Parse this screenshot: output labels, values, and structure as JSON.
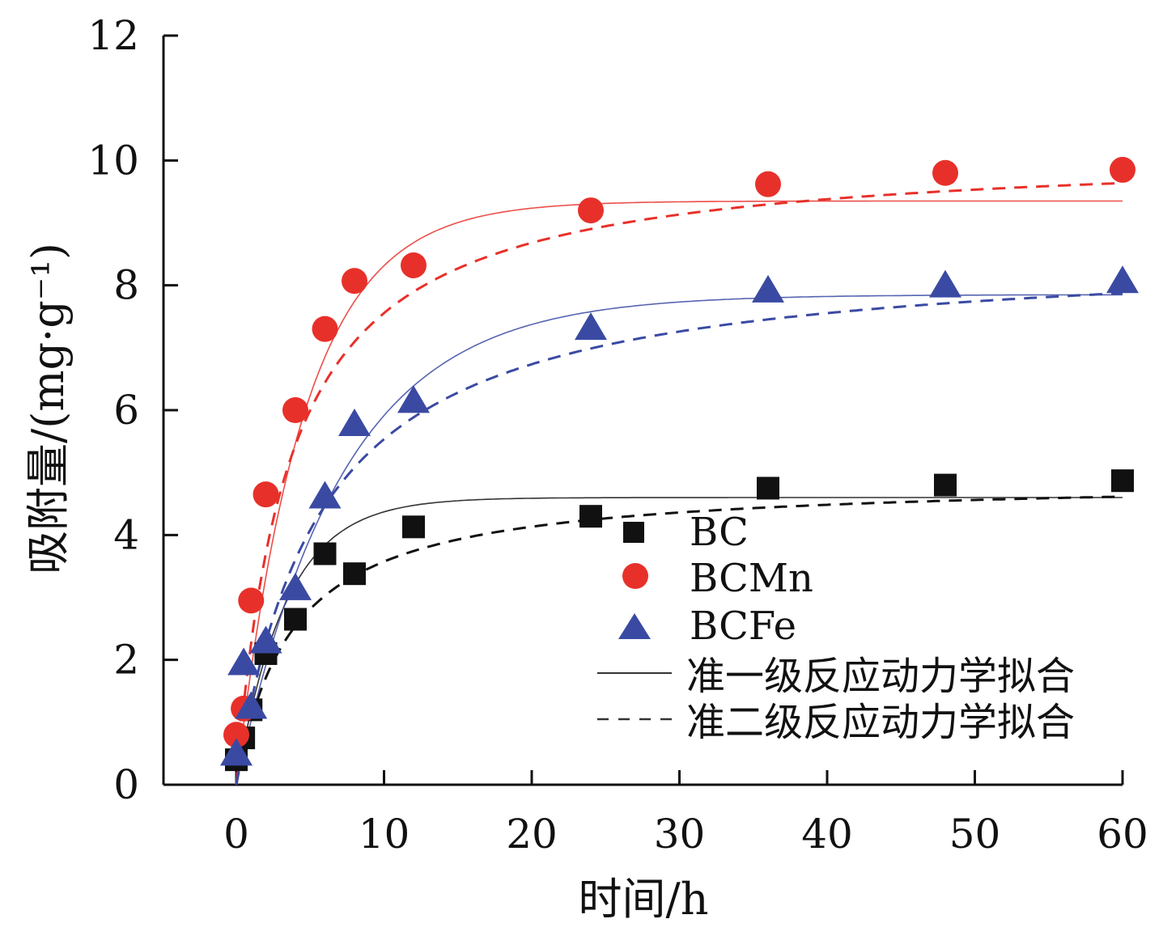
{
  "chart_data": {
    "type": "scatter",
    "title": "",
    "xlabel": "时间/h",
    "ylabel": "吸附量/(mg·g⁻¹)",
    "xlim": [
      -5,
      60
    ],
    "ylim": [
      0,
      12
    ],
    "xticks": [
      0,
      10,
      20,
      30,
      40,
      50,
      60
    ],
    "yticks": [
      0,
      2,
      4,
      6,
      8,
      10,
      12
    ],
    "grid": false,
    "legend_position": "center-right",
    "series": [
      {
        "name": "BC",
        "marker": "square",
        "color": "#111111",
        "x": [
          0,
          0.5,
          1,
          2,
          4,
          6,
          8,
          12,
          24,
          36,
          48,
          60
        ],
        "y": [
          0.4,
          0.75,
          1.2,
          2.1,
          2.65,
          3.7,
          3.38,
          4.13,
          4.3,
          4.75,
          4.8,
          4.87
        ],
        "fit_pfo": {
          "qe": 4.6,
          "k": 0.3
        },
        "fit_pso": {
          "qe": 4.9,
          "k": 0.055
        }
      },
      {
        "name": "BCMn",
        "marker": "circle",
        "color": "#e8302a",
        "x": [
          0,
          0.5,
          1,
          2,
          4,
          6,
          8,
          12,
          24,
          36,
          48,
          60
        ],
        "y": [
          0.8,
          1.22,
          2.95,
          4.65,
          6.0,
          7.3,
          8.07,
          8.32,
          9.2,
          9.62,
          9.8,
          9.85
        ],
        "fit_pfo": {
          "qe": 9.35,
          "k": 0.22
        },
        "fit_pso": {
          "qe": 10.2,
          "k": 0.028
        }
      },
      {
        "name": "BCFe",
        "marker": "triangle",
        "color": "#3a4aa3",
        "x": [
          0,
          0.5,
          1,
          2,
          4,
          6,
          8,
          12,
          24,
          36,
          48,
          60
        ],
        "y": [
          0.5,
          1.95,
          1.25,
          2.3,
          3.15,
          4.62,
          5.78,
          6.15,
          7.32,
          7.92,
          8.0,
          8.07
        ],
        "fit_pfo": {
          "qe": 7.85,
          "k": 0.14
        },
        "fit_pso": {
          "qe": 8.6,
          "k": 0.021
        }
      }
    ],
    "legend": {
      "items": [
        "BC",
        "BCMn",
        "BCFe"
      ],
      "fit_labels": [
        "准一级反应动力学拟合",
        "准二级反应动力学拟合"
      ]
    }
  }
}
